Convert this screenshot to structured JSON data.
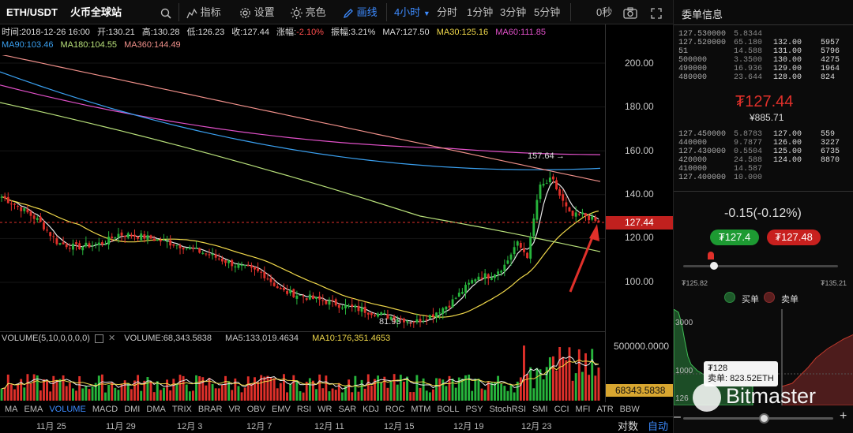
{
  "toolbar": {
    "pair": "ETH/USDT",
    "exchange": "火币全球站",
    "search_icon": "search-icon",
    "indicator": "指标",
    "settings": "设置",
    "brightness": "亮色",
    "draw": "画线",
    "interval_selected": "4小时",
    "intervals": [
      "分时",
      "1分钟",
      "3分钟",
      "5分钟"
    ],
    "seconds": "0秒",
    "camera_icon": "camera-icon",
    "expand_icon": "expand-icon",
    "close_icon": "close-icon"
  },
  "info": {
    "time": "时间:2018-12-26 16:00",
    "open": "开:130.21",
    "high": "高:130.28",
    "low": "低:126.23",
    "close": "收:127.44",
    "change": "涨幅:",
    "change_val": "-2.10%",
    "amplitude": "振幅:3.21%",
    "ma7": "MA7:127.50",
    "ma30": "MA30:125.16",
    "ma60": "MA60:111.85",
    "ma90": "MA90:103.46",
    "ma180": "MA180:104.55",
    "ma360": "MA360:144.49"
  },
  "price_axis": {
    "ticks": [
      "200.00",
      "180.00",
      "160.00",
      "140.00",
      "120.00",
      "100.00"
    ],
    "current": "127.44",
    "high_label": "157.64",
    "low_label": "81.93"
  },
  "volume_bar": {
    "title": "VOLUME(5,10,0,0,0,0)",
    "volume": "VOLUME:68,343.5838",
    "ma5": "MA5:133,019.4634",
    "ma10": "MA10:176,351.4653",
    "axis_top": "500000.0000",
    "current": "68343.5838"
  },
  "indicators": [
    "MA",
    "EMA",
    "VOLUME",
    "MACD",
    "DMI",
    "DMA",
    "TRIX",
    "BRAR",
    "VR",
    "OBV",
    "EMV",
    "RSI",
    "WR",
    "SAR",
    "KDJ",
    "ROC",
    "MTM",
    "BOLL",
    "PSY",
    "StochRSI",
    "SMI",
    "CCI",
    "MFI",
    "ATR",
    "BBW"
  ],
  "indicator_selected": "VOLUME",
  "xaxis": {
    "dates": [
      "11月 25",
      "11月 29",
      "12月 3",
      "12月 7",
      "12月 11",
      "12月 15",
      "12月 19",
      "12月 23"
    ],
    "log": "对数",
    "auto": "自动"
  },
  "sidebar": {
    "title": "委单信息",
    "asks": [
      [
        "127.530000",
        "5.8344",
        "",
        ""
      ],
      [
        "127.520000",
        "65.180",
        "132.00",
        "5957"
      ],
      [
        "51",
        "14.588",
        "131.00",
        "5796"
      ],
      [
        "500000",
        "3.3500",
        "130.00",
        "4275"
      ],
      [
        "490000",
        "16.936",
        "129.00",
        "1964"
      ],
      [
        "480000",
        "23.644",
        "128.00",
        "824"
      ]
    ],
    "last_price": "₮127.44",
    "last_cny": "¥885.71",
    "bids": [
      [
        "127.450000",
        "5.8783",
        "127.00",
        "559"
      ],
      [
        "440000",
        "9.7877",
        "126.00",
        "3227"
      ],
      [
        "127.430000",
        "0.5504",
        "125.00",
        "6735"
      ],
      [
        "420000",
        "24.588",
        "124.00",
        "8870"
      ],
      [
        "410000",
        "14.587",
        "",
        ""
      ],
      [
        "127.400000",
        "10.000",
        "",
        ""
      ]
    ],
    "spread": "-0.15(-0.12%)",
    "bid_price": "₮127.4",
    "ask_price": "₮127.48",
    "range_low": "₮125.82",
    "range_high": "₮135.21",
    "legend_buy": "买单",
    "legend_sell": "卖单",
    "depth_axis": [
      "3000",
      "1000",
      "126"
    ],
    "tooltip_price": "₮128",
    "tooltip_sell": "卖单: 823.52ETH",
    "watermark": "Bitmaster",
    "colors": {
      "up": "#22a83a",
      "down": "#e0302a"
    }
  }
}
